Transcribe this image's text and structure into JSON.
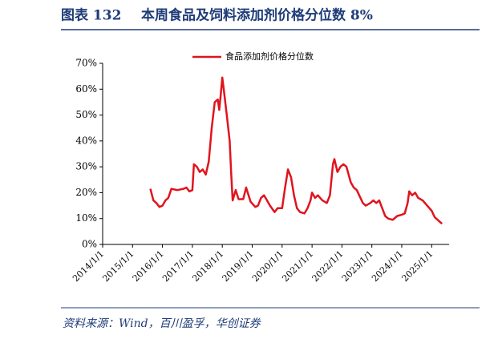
{
  "title_prefix": "图表 132",
  "chart_data": {
    "type": "line",
    "title": "本周食品及饲料添加剂价格分位数 8%",
    "source": "资料来源：Wind，百川盈孚，华创证券",
    "x": [
      "2015/8/7",
      "2015/9/13",
      "2015/10/19",
      "2015/11/25",
      "2016/1/1",
      "2016/2/7",
      "2016/3/13",
      "2016/4/19",
      "2016/7/1",
      "2016/9/13",
      "2016/10/19",
      "2016/11/25",
      "2017/1/1",
      "2017/1/19",
      "2017/2/25",
      "2017/4/1",
      "2017/5/7",
      "2017/6/13",
      "2017/7/19",
      "2017/8/25",
      "2017/10/1",
      "2017/11/7",
      "2017/11/25",
      "2017/12/13",
      "2018/1/1",
      "2018/1/19",
      "2018/2/25",
      "2018/4/1",
      "2018/4/19",
      "2018/5/7",
      "2018/6/13",
      "2018/7/19",
      "2018/9/13",
      "2018/10/19",
      "2018/11/7",
      "2018/12/13",
      "2019/2/7",
      "2019/3/13",
      "2019/4/19",
      "2019/5/25",
      "2019/7/1",
      "2019/8/7",
      "2019/10/1",
      "2019/11/7",
      "2020/1/1",
      "2020/2/7",
      "2020/3/13",
      "2020/4/19",
      "2020/5/25",
      "2020/7/1",
      "2020/8/7",
      "2020/10/1",
      "2020/11/7",
      "2020/12/13",
      "2021/1/1",
      "2021/2/7",
      "2021/3/13",
      "2021/5/7",
      "2021/7/1",
      "2021/8/7",
      "2021/9/13",
      "2021/10/1",
      "2021/11/7",
      "2021/12/13",
      "2022/1/19",
      "2022/2/25",
      "2022/4/19",
      "2022/5/25",
      "2022/7/1",
      "2022/8/7",
      "2022/9/13",
      "2022/10/19",
      "2022/12/13",
      "2023/1/19",
      "2023/2/25",
      "2023/4/1",
      "2023/5/7",
      "2023/6/13",
      "2023/7/19",
      "2023/9/13",
      "2023/11/7",
      "2024/1/1",
      "2024/2/7",
      "2024/3/13",
      "2024/4/1",
      "2024/5/7",
      "2024/6/13",
      "2024/7/19",
      "2024/9/13",
      "2024/11/7",
      "2025/1/1",
      "2025/2/7",
      "2025/4/1",
      "2025/5/7"
    ],
    "series": [
      {
        "name": "食品添加剂价格分位数",
        "color": "#e0141e",
        "values": [
          21.5,
          17,
          16,
          14.5,
          15,
          17,
          18,
          21.5,
          21,
          21.5,
          22,
          20.5,
          21,
          31,
          30,
          28,
          29,
          27,
          32,
          45,
          55,
          56,
          52,
          58,
          64.5,
          60,
          50,
          40,
          28,
          17,
          21,
          17.5,
          17.5,
          22,
          20,
          16.5,
          14.5,
          15,
          18,
          19,
          17,
          15,
          12.5,
          14,
          14,
          22,
          29,
          26,
          19,
          14,
          12.5,
          12,
          14,
          17,
          20,
          18,
          19,
          17,
          16,
          19,
          31,
          33,
          28,
          30,
          31,
          30,
          24,
          22,
          21,
          18.5,
          16,
          15,
          16,
          17,
          16,
          17,
          14,
          11,
          10,
          9.5,
          11,
          11.5,
          12,
          16,
          20.5,
          19,
          20,
          18,
          17,
          15,
          13,
          10.5,
          9,
          8
        ]
      }
    ],
    "xlim": [
      "2014/1/1",
      "2025/8/1"
    ],
    "xticks": [
      "2014/1/1",
      "2015/1/1",
      "2016/1/1",
      "2017/1/1",
      "2018/1/1",
      "2019/1/1",
      "2020/1/1",
      "2021/1/1",
      "2022/1/1",
      "2023/1/1",
      "2024/1/1",
      "2025/1/1"
    ],
    "ylim": [
      0,
      70
    ],
    "yticks": [
      {
        "value": 0,
        "label": "0%"
      },
      {
        "value": 10,
        "label": "10%"
      },
      {
        "value": 20,
        "label": "20%"
      },
      {
        "value": 30,
        "label": "30%"
      },
      {
        "value": 40,
        "label": "40%"
      },
      {
        "value": 50,
        "label": "50%"
      },
      {
        "value": 60,
        "label": "60%"
      },
      {
        "value": 70,
        "label": "70%"
      }
    ],
    "legend": "top"
  }
}
